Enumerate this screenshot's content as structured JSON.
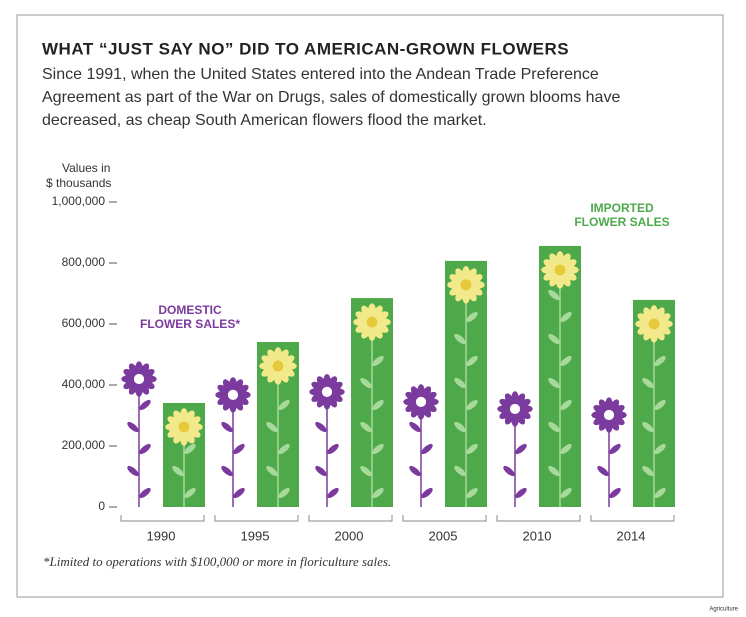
{
  "chart_data": {
    "type": "bar",
    "title": "WHAT “JUST SAY NO” DID TO AMERICAN-GROWN FLOWERS",
    "subtitle": [
      "Since 1991, when the United States entered into the Andean Trade Preference",
      "Agreement as part of the War on Drugs, sales of domestically grown blooms have",
      "decreased, as cheap South American flowers flood the market."
    ],
    "y_axis_label": [
      "Values in",
      "$ thousands"
    ],
    "categories": [
      "1990",
      "1995",
      "2000",
      "2005",
      "2010",
      "2014"
    ],
    "series": [
      {
        "name": [
          "DOMESTIC",
          "FLOWER SALES*"
        ],
        "color": "#7b3a9e",
        "marker": "flower",
        "values": [
          472000,
          420000,
          430000,
          397000,
          374000,
          354000
        ]
      },
      {
        "name": [
          "IMPORTED",
          "FLOWER SALES"
        ],
        "color": "#4ea94b",
        "marker": "bar",
        "values": [
          341000,
          541000,
          685000,
          807000,
          856000,
          679000
        ]
      }
    ],
    "ylim": [
      0,
      1000000
    ],
    "yticks": [
      0,
      {
        "value": 200000,
        "label": "200,000"
      },
      {
        "value": 400000,
        "label": "400,000"
      },
      {
        "value": 600000,
        "label": "600,000"
      },
      {
        "value": 800000,
        "label": "800,000"
      },
      {
        "value": 1000000,
        "label": "1,000,000"
      }
    ],
    "footnote": "*Limited to operations with $100,000 or more in floriculture sales.",
    "source_tag": "Agriculture"
  }
}
